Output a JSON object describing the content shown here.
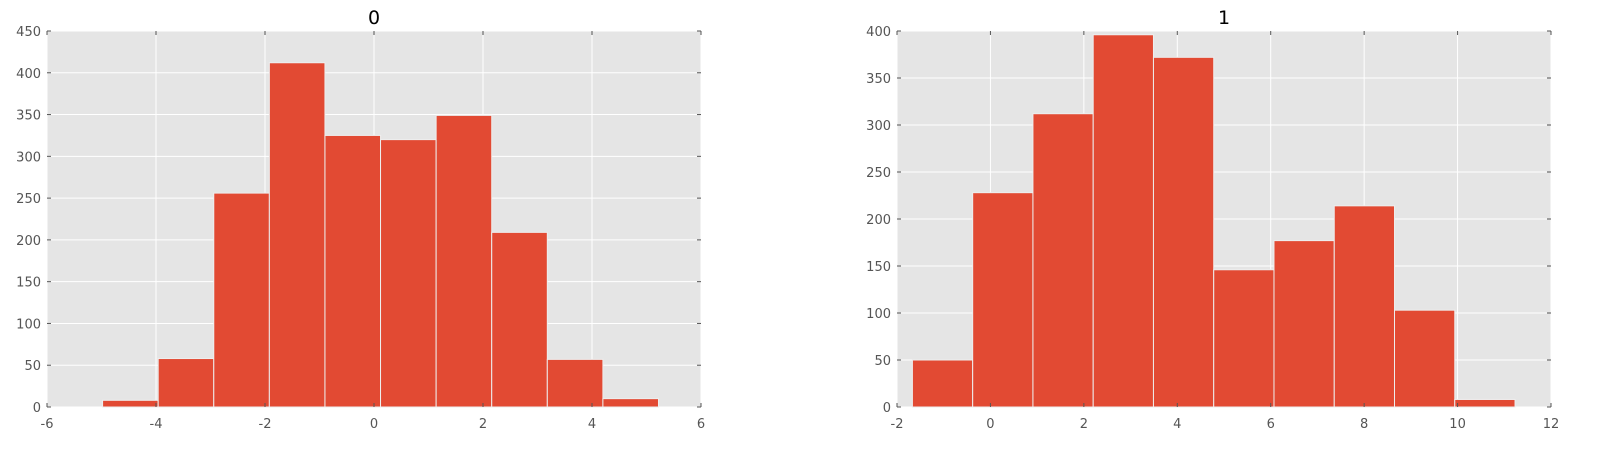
{
  "colors": {
    "bar": "#E24A33",
    "bar_edge": "#EEEEEE",
    "plot_bg": "#E5E5E5",
    "grid": "#FFFFFF",
    "tick_label": "#555555",
    "title": "#000000"
  },
  "chart_data": [
    {
      "type": "bar",
      "title": "0",
      "xlabel": "",
      "ylabel": "",
      "grid": true,
      "xlim": [
        -6,
        6
      ],
      "ylim": [
        0,
        450
      ],
      "xticks": [
        "-6",
        "-4",
        "-2",
        "0",
        "2",
        "4",
        "6"
      ],
      "yticks": [
        "0",
        "50",
        "100",
        "150",
        "200",
        "250",
        "300",
        "350",
        "400",
        "450"
      ],
      "bins": [
        {
          "x0": -4.98,
          "x1": -3.96,
          "count": 8
        },
        {
          "x0": -3.96,
          "x1": -2.94,
          "count": 58
        },
        {
          "x0": -2.94,
          "x1": -1.92,
          "count": 256
        },
        {
          "x0": -1.92,
          "x1": -0.9,
          "count": 412
        },
        {
          "x0": -0.9,
          "x1": 0.12,
          "count": 325
        },
        {
          "x0": 0.12,
          "x1": 1.14,
          "count": 320
        },
        {
          "x0": 1.14,
          "x1": 2.16,
          "count": 349
        },
        {
          "x0": 2.16,
          "x1": 3.18,
          "count": 209
        },
        {
          "x0": 3.18,
          "x1": 4.2,
          "count": 57
        },
        {
          "x0": 4.2,
          "x1": 5.22,
          "count": 10
        }
      ]
    },
    {
      "type": "bar",
      "title": "1",
      "xlabel": "",
      "ylabel": "",
      "grid": true,
      "xlim": [
        -2,
        12
      ],
      "ylim": [
        0,
        400
      ],
      "xticks": [
        "-2",
        "0",
        "2",
        "4",
        "6",
        "8",
        "10",
        "12"
      ],
      "yticks": [
        "0",
        "50",
        "100",
        "150",
        "200",
        "250",
        "300",
        "350",
        "400"
      ],
      "bins": [
        {
          "x0": -1.67,
          "x1": -0.38,
          "count": 50
        },
        {
          "x0": -0.38,
          "x1": 0.91,
          "count": 228
        },
        {
          "x0": 0.91,
          "x1": 2.2,
          "count": 312
        },
        {
          "x0": 2.2,
          "x1": 3.49,
          "count": 396
        },
        {
          "x0": 3.49,
          "x1": 4.78,
          "count": 372
        },
        {
          "x0": 4.78,
          "x1": 6.07,
          "count": 146
        },
        {
          "x0": 6.07,
          "x1": 7.36,
          "count": 177
        },
        {
          "x0": 7.36,
          "x1": 8.65,
          "count": 214
        },
        {
          "x0": 8.65,
          "x1": 9.94,
          "count": 103
        },
        {
          "x0": 9.94,
          "x1": 11.23,
          "count": 8
        }
      ]
    }
  ]
}
